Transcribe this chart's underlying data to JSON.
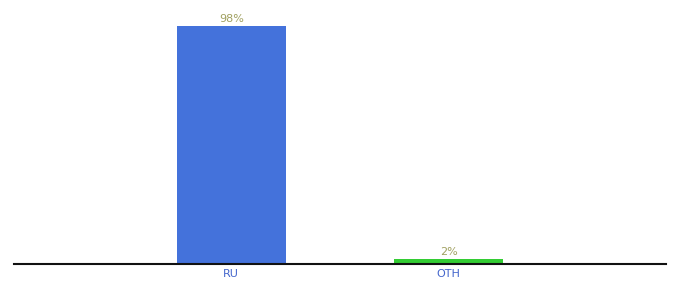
{
  "categories": [
    "RU",
    "OTH"
  ],
  "values": [
    98,
    2
  ],
  "bar_colors": [
    "#4472db",
    "#33cc33"
  ],
  "label_colors": [
    "#a0a060",
    "#a0a060"
  ],
  "labels": [
    "98%",
    "2%"
  ],
  "background_color": "#ffffff",
  "ylim": [
    0,
    105
  ],
  "bar_width": 0.5,
  "label_fontsize": 8,
  "tick_fontsize": 8,
  "axis_line_color": "#111111",
  "xlim": [
    -0.5,
    2.5
  ]
}
